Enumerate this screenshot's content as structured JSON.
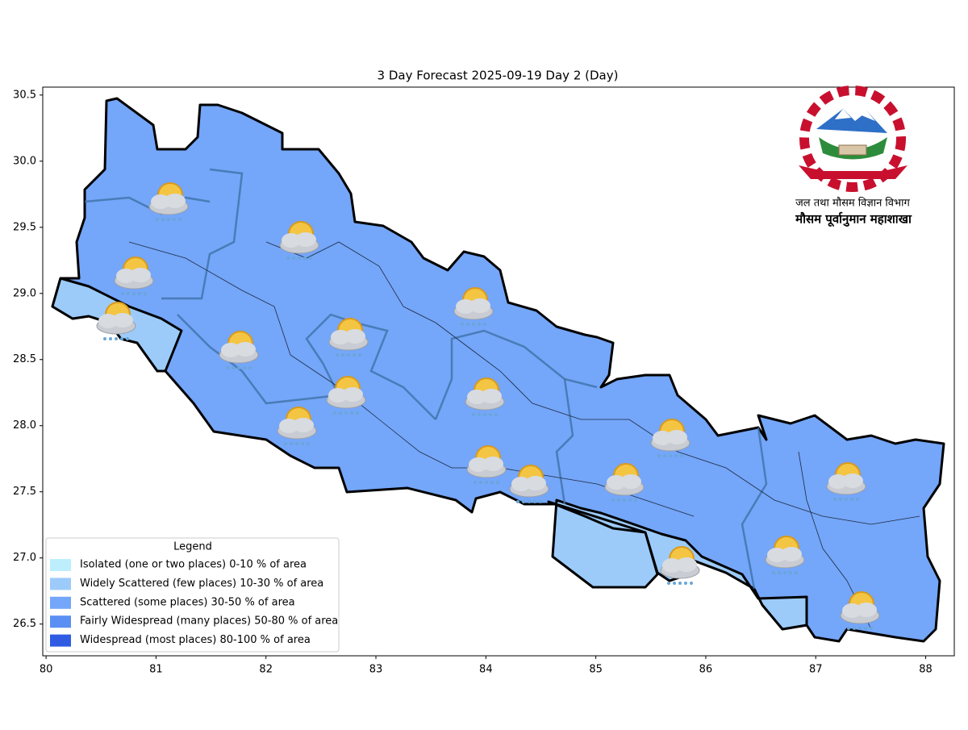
{
  "title": "3 Day Forecast 2025-09-19 Day 2 (Day)",
  "map": {
    "xlim": [
      79.97,
      88.26
    ],
    "ylim": [
      26.26,
      30.56
    ],
    "xticks": [
      80,
      81,
      82,
      83,
      84,
      85,
      86,
      87,
      88
    ],
    "yticks": [
      {
        "value": 26.5,
        "label": "26.5"
      },
      {
        "value": 27,
        "label": "27.0"
      },
      27.5,
      {
        "value": 28,
        "label": "28.0"
      },
      28.5,
      {
        "value": 29,
        "label": "29.0"
      },
      29.5,
      {
        "value": 30,
        "label": "30.0"
      },
      30.5
    ]
  },
  "legend": {
    "title": "Legend",
    "items": [
      {
        "name": "Isolated (one or two places)  0-10 % of area",
        "color": "#bdeefe"
      },
      {
        "name": "Widely Scattered (few places) 10-30 % of area",
        "color": "#9ccbfa"
      },
      {
        "name": "Scattered (some places) 30-50  % of area",
        "color": "#74a6f9"
      },
      {
        "name": "Fairly Widespread (many places) 50-80 % of area",
        "color": "#5b8ff3"
      },
      {
        "name": "Widespread (most places) 80-100 % of area",
        "color": "#2f5ce2"
      }
    ]
  },
  "logo": {
    "line1": "जल तथा मौसम विज्ञान विभाग",
    "line2": "मौसम पूर्वानुमान महाशाखा"
  }
}
